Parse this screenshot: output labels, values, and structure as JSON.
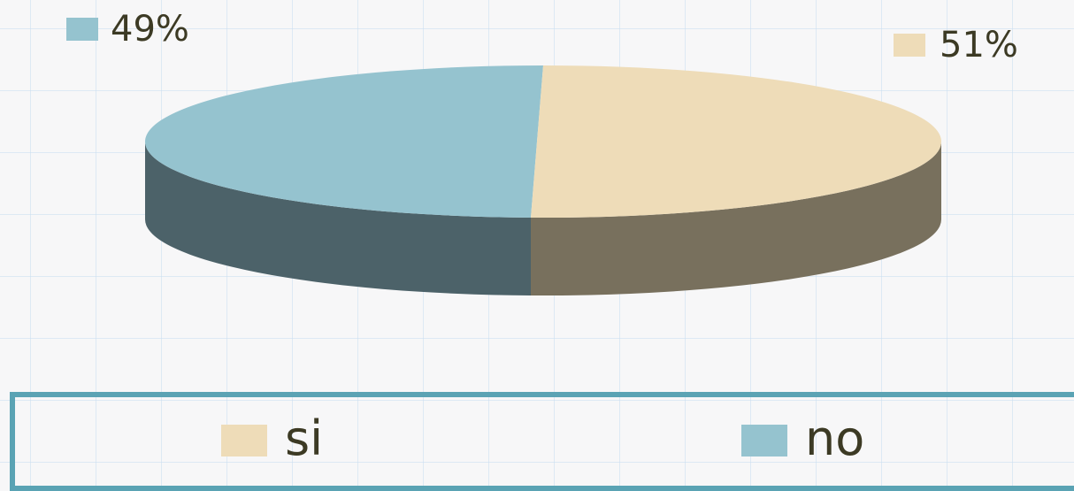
{
  "chart_data": {
    "type": "pie",
    "title": "",
    "categories": [
      "si",
      "no"
    ],
    "values": [
      51,
      49
    ],
    "value_labels": [
      "51%",
      "49%"
    ],
    "colors": {
      "si": "#eedcb8",
      "si_side": "#78705d",
      "no": "#95c3cf",
      "no_side": "#4c6269"
    },
    "legend": {
      "placement": "bottom",
      "items": [
        {
          "label": "si",
          "color": "#eedcb8"
        },
        {
          "label": "no",
          "color": "#95c3cf"
        }
      ]
    },
    "style": "3d-exploded-ellipse"
  },
  "legend_border_color": "#5aa3b4"
}
